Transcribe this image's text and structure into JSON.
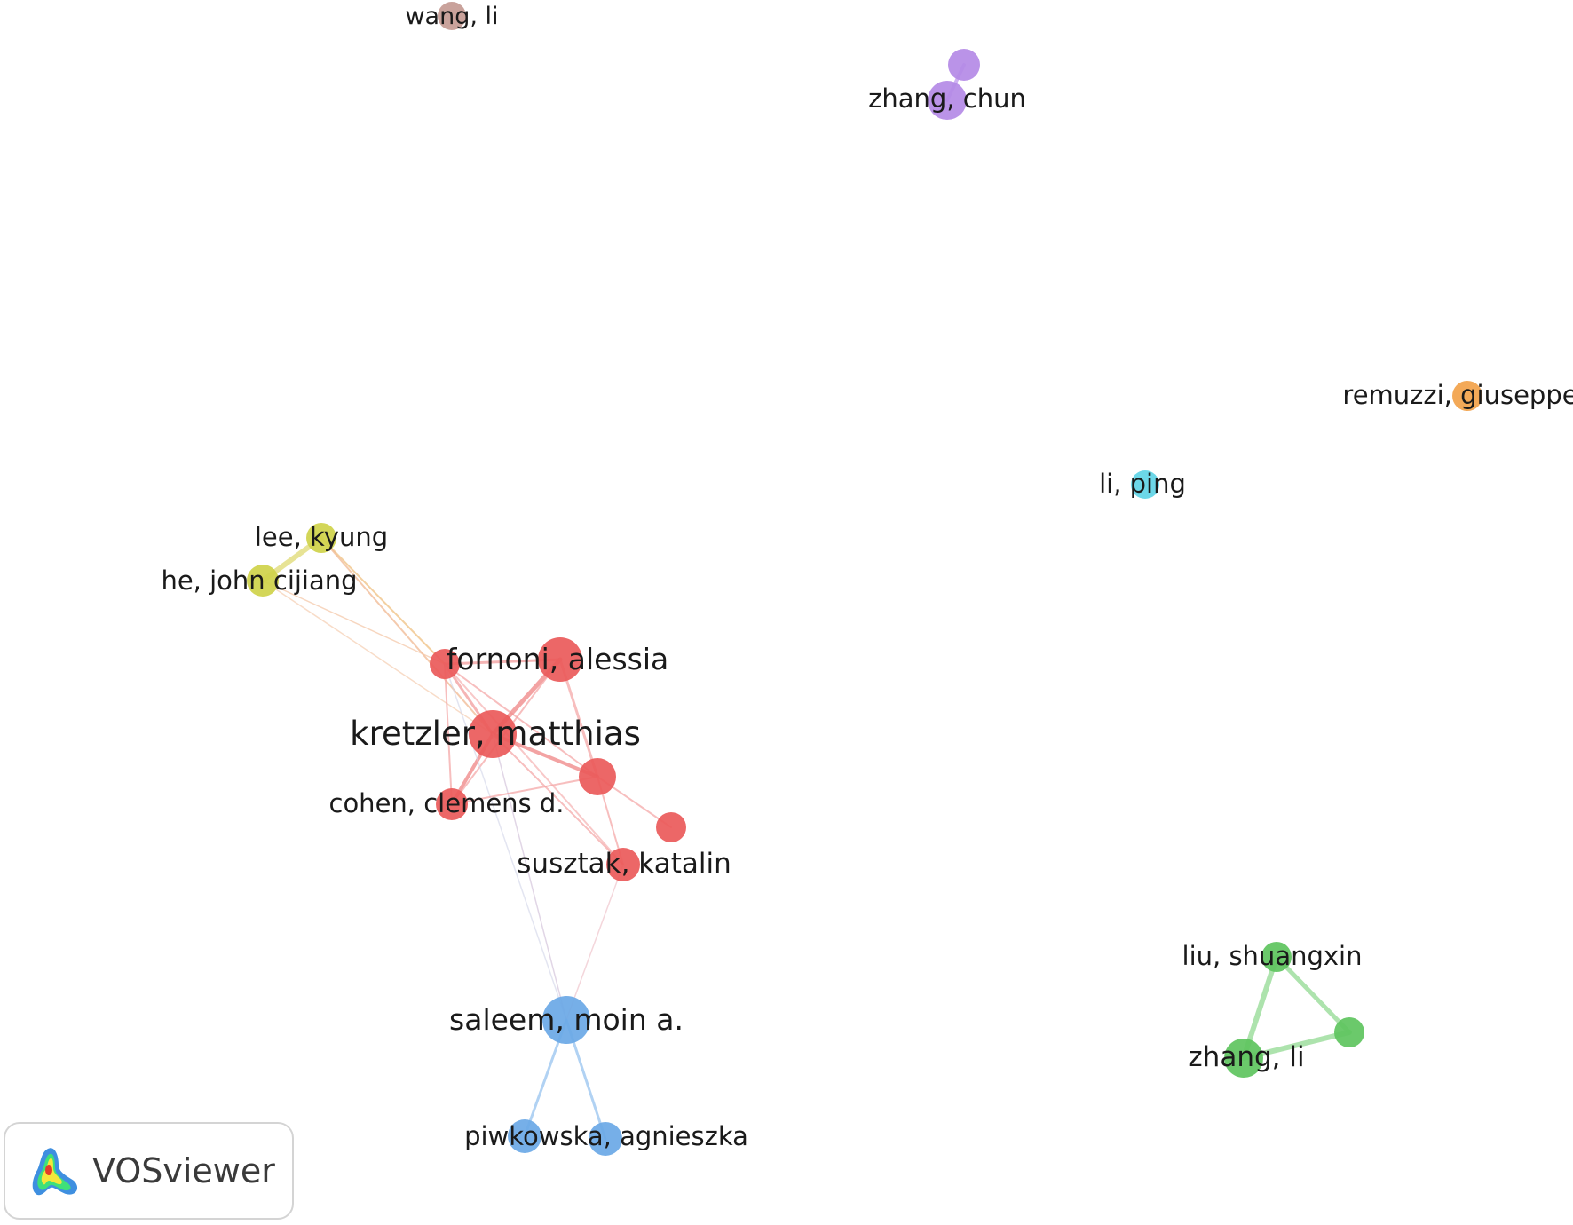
{
  "network": {
    "nodes": [
      {
        "id": "wang-li",
        "label": "wang, li",
        "color": "#c49a92"
      },
      {
        "id": "zhang-chun",
        "label": "zhang, chun",
        "color": "#b48ae6"
      },
      {
        "id": "purple-2",
        "label": "",
        "color": "#b48ae6"
      },
      {
        "id": "remuzzi-giuseppe",
        "label": "remuzzi, giuseppe",
        "color": "#f2a24a"
      },
      {
        "id": "li-ping",
        "label": "li, ping",
        "color": "#5fd4e6"
      },
      {
        "id": "lee-kyung",
        "label": "lee, kyung",
        "color": "#cfd24a"
      },
      {
        "id": "he-john-cijiang",
        "label": "he, john cijiang",
        "color": "#cfd24a"
      },
      {
        "id": "fornoni-alessia",
        "label": "fornoni, alessia",
        "color": "#ea5a5a"
      },
      {
        "id": "red-a",
        "label": "",
        "color": "#ea5a5a"
      },
      {
        "id": "kretzler-matthias",
        "label": "kretzler, matthias",
        "color": "#ea5a5a"
      },
      {
        "id": "red-b",
        "label": "",
        "color": "#ea5a5a"
      },
      {
        "id": "cohen-clemens-d",
        "label": "cohen, clemens d.",
        "color": "#ea5a5a"
      },
      {
        "id": "red-c",
        "label": "",
        "color": "#ea5a5a"
      },
      {
        "id": "susztak-katalin",
        "label": "susztak, katalin",
        "color": "#ea5a5a"
      },
      {
        "id": "liu-shuangxin",
        "label": "liu, shuangxin",
        "color": "#5ec45e"
      },
      {
        "id": "green-2",
        "label": "",
        "color": "#5ec45e"
      },
      {
        "id": "zhang-li",
        "label": "zhang, li",
        "color": "#5ec45e"
      },
      {
        "id": "saleem-moin-a",
        "label": "saleem, moin a.",
        "color": "#6aa8e6"
      },
      {
        "id": "blue-a",
        "label": "",
        "color": "#6aa8e6"
      },
      {
        "id": "piwkowska-agnieszka",
        "label": "piwkowska, agnieszka",
        "color": "#6aa8e6"
      }
    ]
  },
  "badge": {
    "logo": "vosviewer-logo-icon",
    "text": "VOSviewer"
  }
}
